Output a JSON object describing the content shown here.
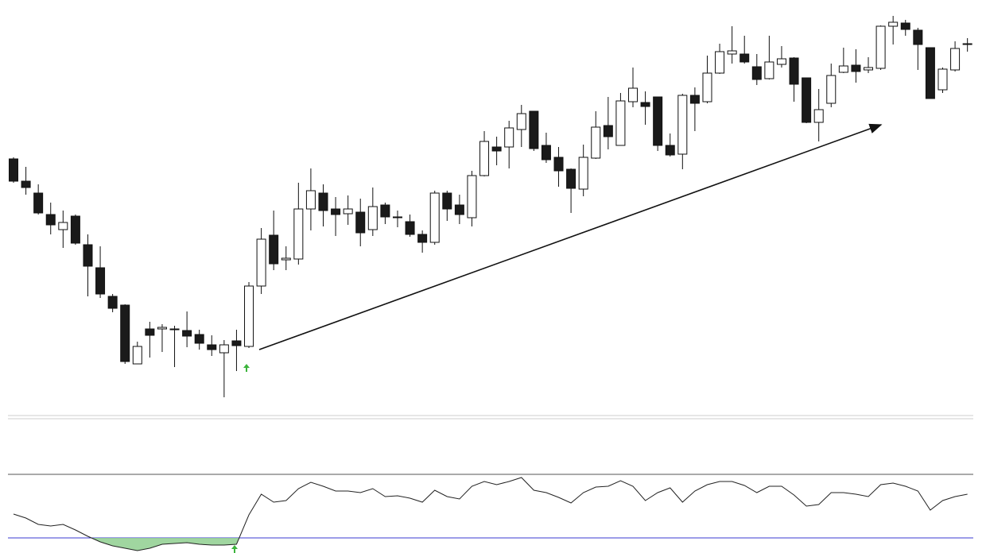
{
  "chart_data": [
    {
      "type": "candlestick",
      "ylim": [
        180,
        700
      ],
      "up_color": "#ffffff",
      "down_color": "#1a1a1a",
      "open": [
        500,
        472,
        457,
        430,
        411,
        428,
        392,
        363,
        327,
        316,
        242,
        286,
        286,
        286,
        284,
        279,
        266,
        256,
        271,
        264,
        340,
        404,
        373,
        374,
        437,
        457,
        437,
        431,
        433,
        411,
        442,
        427,
        421,
        405,
        395,
        457,
        442,
        426,
        479,
        515,
        515,
        537,
        560,
        517,
        502,
        487,
        462,
        501,
        542,
        517,
        572,
        571,
        578,
        517,
        506,
        580,
        572,
        608,
        632,
        632,
        616,
        601,
        619,
        627,
        602,
        546,
        570,
        609,
        618,
        612,
        614,
        667,
        671,
        662,
        640,
        587,
        612,
        645
      ],
      "high": [
        502,
        490,
        468,
        445,
        435,
        430,
        405,
        390,
        330,
        317,
        270,
        295,
        292,
        290,
        308,
        285,
        278,
        272,
        285,
        345,
        413,
        435,
        390,
        470,
        488,
        468,
        452,
        454,
        450,
        464,
        445,
        435,
        430,
        410,
        460,
        460,
        455,
        485,
        535,
        528,
        548,
        568,
        560,
        533,
        515,
        488,
        518,
        560,
        578,
        583,
        615,
        585,
        578,
        532,
        582,
        590,
        630,
        645,
        667,
        655,
        632,
        655,
        642,
        628,
        602,
        588,
        620,
        640,
        638,
        628,
        668,
        680,
        675,
        665,
        640,
        615,
        648,
        652
      ],
      "low": [
        470,
        455,
        430,
        405,
        388,
        392,
        327,
        325,
        307,
        242,
        242,
        250,
        257,
        238,
        263,
        260,
        252,
        200,
        233,
        262,
        330,
        360,
        360,
        367,
        410,
        415,
        403,
        417,
        390,
        403,
        418,
        414,
        402,
        382,
        392,
        422,
        418,
        415,
        478,
        492,
        488,
        515,
        510,
        495,
        465,
        432,
        453,
        500,
        512,
        517,
        565,
        543,
        510,
        503,
        487,
        535,
        570,
        607,
        620,
        620,
        593,
        600,
        615,
        572,
        545,
        522,
        565,
        608,
        596,
        608,
        612,
        644,
        655,
        612,
        576,
        583,
        610,
        635
      ],
      "close": [
        472,
        464,
        432,
        417,
        420,
        394,
        365,
        330,
        312,
        245,
        264,
        278,
        288,
        286,
        277,
        268,
        260,
        266,
        265,
        340,
        399,
        368,
        375,
        437,
        460,
        435,
        430,
        437,
        407,
        440,
        427,
        427,
        405,
        395,
        457,
        437,
        430,
        479,
        522,
        510,
        539,
        557,
        513,
        499,
        485,
        463,
        502,
        540,
        528,
        573,
        589,
        566,
        517,
        505,
        580,
        570,
        608,
        635,
        636,
        622,
        600,
        622,
        626,
        594,
        546,
        562,
        605,
        617,
        610,
        615,
        667,
        672,
        663,
        644,
        576,
        613,
        639,
        645
      ]
    },
    {
      "type": "line",
      "ylim": [
        10,
        90
      ],
      "levels": [
        30,
        70
      ],
      "color": "#222222",
      "fill_color": "#8fcf8f",
      "values": [
        45,
        42.5,
        38.5,
        37.5,
        38.5,
        35,
        31,
        27.5,
        25,
        23.5,
        22,
        23.5,
        26,
        26.5,
        27,
        26,
        25.5,
        25.5,
        26,
        44.5,
        57.5,
        52.5,
        53.5,
        61,
        65,
        62.5,
        59.5,
        59.5,
        58.5,
        61,
        56,
        56.5,
        55,
        52.5,
        60,
        56,
        54.5,
        62.5,
        65.5,
        63.5,
        65.5,
        68,
        60,
        58.5,
        55.5,
        52,
        58.5,
        62,
        62.5,
        66,
        62.5,
        53.5,
        58.5,
        61.5,
        52.5,
        59.5,
        63.5,
        65.5,
        65.5,
        63,
        58.5,
        62.5,
        62.5,
        57,
        50,
        51,
        58.5,
        58.5,
        57.5,
        56,
        63.5,
        64.5,
        62.5,
        59.5,
        47.5,
        53.5,
        56,
        57.5
      ]
    }
  ]
}
